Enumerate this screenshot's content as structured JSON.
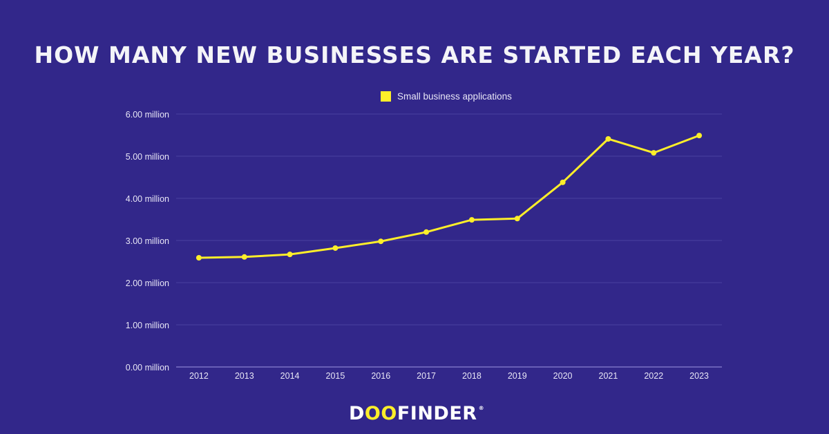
{
  "title": "HOW MANY NEW BUSINESSES ARE STARTED EACH YEAR?",
  "legend": {
    "label": "Small business applications",
    "color": "#fdee2a"
  },
  "logo": {
    "prefix": "D",
    "accent": "OO",
    "suffix": "FINDER",
    "registered": "®"
  },
  "colors": {
    "background": "#32278a",
    "line": "#fdee2a",
    "grid": "#4a40a0",
    "text": "#e8e6f6"
  },
  "chart_data": {
    "type": "line",
    "title": "HOW MANY NEW BUSINESSES ARE STARTED EACH YEAR?",
    "xlabel": "",
    "ylabel": "",
    "categories": [
      "2012",
      "2013",
      "2014",
      "2015",
      "2016",
      "2017",
      "2018",
      "2019",
      "2020",
      "2021",
      "2022",
      "2023"
    ],
    "series": [
      {
        "name": "Small business applications",
        "values": [
          2.59,
          2.61,
          2.67,
          2.82,
          2.98,
          3.2,
          3.49,
          3.52,
          4.38,
          5.41,
          5.08,
          5.49
        ]
      }
    ],
    "unit": "million",
    "ylim": [
      0,
      6
    ],
    "yticks": [
      "0.00 million",
      "1.00 million",
      "2.00 million",
      "3.00 million",
      "4.00 million",
      "5.00 million",
      "6.00 million"
    ],
    "grid": true,
    "legend_position": "top"
  }
}
